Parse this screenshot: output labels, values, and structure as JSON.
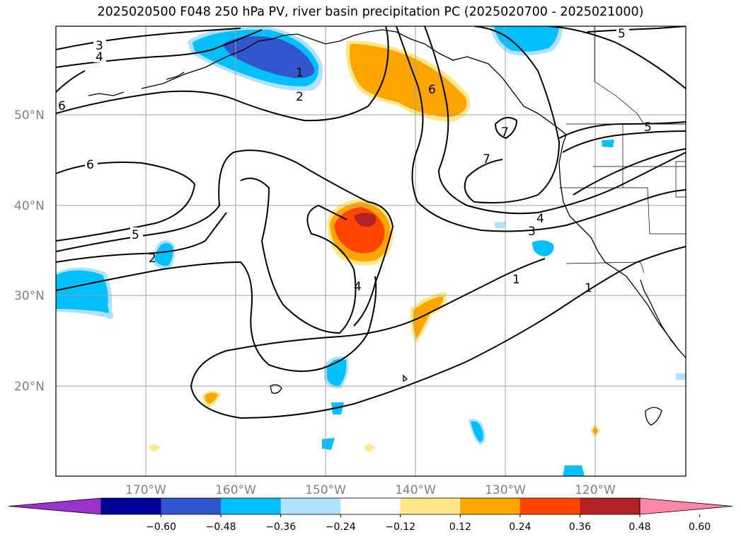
{
  "title": "2025020500 F048 250 hPa PV, river basin precipitation PC (2025020700 - 2025021000)",
  "map": {
    "projection": "PlateCarree",
    "lon_range": [
      -180,
      -110
    ],
    "lat_range": [
      10,
      60
    ],
    "gridlines": true,
    "lat_labels": [
      "50°N",
      "40°N",
      "30°N",
      "20°N"
    ],
    "lon_labels": [
      "170°W",
      "160°W",
      "150°W",
      "140°W",
      "130°W",
      "120°W"
    ],
    "pv_contour_labels": [
      "3",
      "4",
      "5",
      "6",
      "6",
      "5",
      "2",
      "1",
      "2",
      "6",
      "7",
      "7",
      "5",
      "4",
      "3",
      "4",
      "1",
      "1"
    ],
    "shading": [
      {
        "name": "gulf-of-alaska-negative",
        "value_class": "-0.36"
      },
      {
        "name": "alaska-panhandle-positive",
        "value_class": "0.36"
      },
      {
        "name": "central-pacific-positive",
        "value_class": "0.48"
      },
      {
        "name": "hawaii-negative",
        "value_class": "-0.24"
      },
      {
        "name": "subtropical-positive",
        "value_class": "0.24"
      }
    ]
  },
  "colorbar": {
    "ticks": [
      "−0.60",
      "−0.48",
      "−0.36",
      "−0.24",
      "−0.12",
      "0.12",
      "0.24",
      "0.36",
      "0.48",
      "0.60"
    ],
    "colors": [
      "#9933cc",
      "#000099",
      "#3355cc",
      "#00bfff",
      "#b0e2ff",
      "#ffffff",
      "#ffe88a",
      "#ffa500",
      "#ff4500",
      "#b22222",
      "#ff88aa"
    ],
    "extend": "both"
  }
}
